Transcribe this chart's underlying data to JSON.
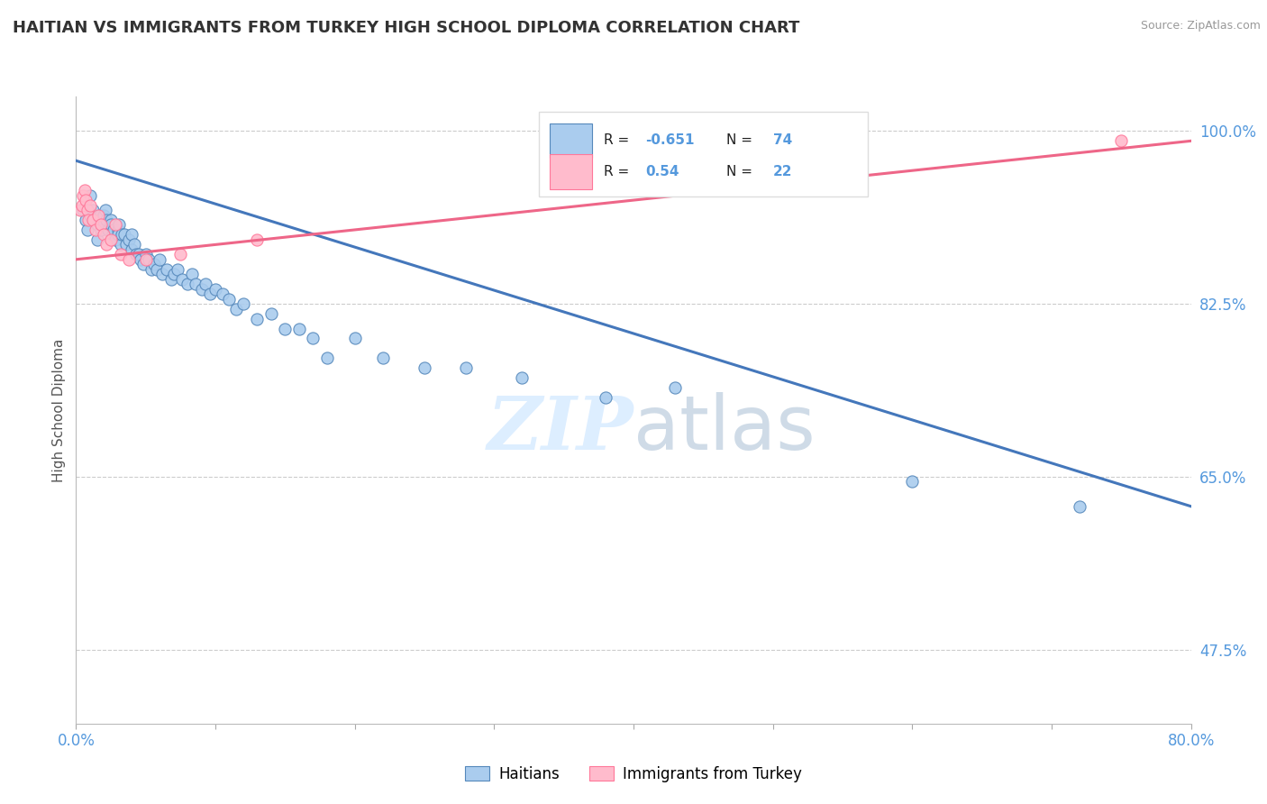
{
  "title": "HAITIAN VS IMMIGRANTS FROM TURKEY HIGH SCHOOL DIPLOMA CORRELATION CHART",
  "source": "Source: ZipAtlas.com",
  "ylabel": "High School Diploma",
  "xlim": [
    0.0,
    0.8
  ],
  "ylim": [
    0.4,
    1.035
  ],
  "haitiansR": -0.651,
  "haitiansN": 74,
  "turkeyR": 0.54,
  "turkeyN": 22,
  "blue_scatter_x": [
    0.005,
    0.007,
    0.008,
    0.01,
    0.01,
    0.012,
    0.013,
    0.015,
    0.015,
    0.017,
    0.018,
    0.02,
    0.02,
    0.021,
    0.022,
    0.023,
    0.025,
    0.025,
    0.026,
    0.027,
    0.028,
    0.03,
    0.03,
    0.031,
    0.032,
    0.033,
    0.035,
    0.036,
    0.038,
    0.04,
    0.04,
    0.042,
    0.043,
    0.045,
    0.046,
    0.048,
    0.05,
    0.052,
    0.054,
    0.056,
    0.058,
    0.06,
    0.062,
    0.065,
    0.068,
    0.07,
    0.073,
    0.076,
    0.08,
    0.083,
    0.086,
    0.09,
    0.093,
    0.096,
    0.1,
    0.105,
    0.11,
    0.115,
    0.12,
    0.13,
    0.14,
    0.15,
    0.16,
    0.17,
    0.18,
    0.2,
    0.22,
    0.25,
    0.28,
    0.32,
    0.38,
    0.43,
    0.6,
    0.72
  ],
  "blue_scatter_y": [
    0.92,
    0.91,
    0.9,
    0.935,
    0.915,
    0.92,
    0.91,
    0.905,
    0.89,
    0.915,
    0.9,
    0.915,
    0.905,
    0.92,
    0.91,
    0.9,
    0.91,
    0.905,
    0.895,
    0.9,
    0.89,
    0.9,
    0.895,
    0.905,
    0.885,
    0.895,
    0.895,
    0.885,
    0.89,
    0.895,
    0.88,
    0.885,
    0.875,
    0.875,
    0.87,
    0.865,
    0.875,
    0.87,
    0.86,
    0.865,
    0.86,
    0.87,
    0.855,
    0.86,
    0.85,
    0.855,
    0.86,
    0.85,
    0.845,
    0.855,
    0.845,
    0.84,
    0.845,
    0.835,
    0.84,
    0.835,
    0.83,
    0.82,
    0.825,
    0.81,
    0.815,
    0.8,
    0.8,
    0.79,
    0.77,
    0.79,
    0.77,
    0.76,
    0.76,
    0.75,
    0.73,
    0.74,
    0.645,
    0.62
  ],
  "pink_scatter_x": [
    0.003,
    0.004,
    0.005,
    0.006,
    0.007,
    0.008,
    0.009,
    0.01,
    0.012,
    0.014,
    0.016,
    0.018,
    0.02,
    0.022,
    0.025,
    0.028,
    0.032,
    0.038,
    0.05,
    0.075,
    0.13,
    0.75
  ],
  "pink_scatter_y": [
    0.92,
    0.925,
    0.935,
    0.94,
    0.93,
    0.92,
    0.91,
    0.925,
    0.91,
    0.9,
    0.915,
    0.905,
    0.895,
    0.885,
    0.89,
    0.905,
    0.875,
    0.87,
    0.87,
    0.875,
    0.89,
    0.99
  ],
  "blue_line_x": [
    0.0,
    0.8
  ],
  "blue_line_y": [
    0.97,
    0.62
  ],
  "pink_line_x": [
    0.0,
    0.8
  ],
  "pink_line_y": [
    0.87,
    0.99
  ],
  "blue_scatter_color": "#AACCEE",
  "blue_edge_color": "#5588BB",
  "pink_scatter_color": "#FFBBCC",
  "pink_edge_color": "#FF7799",
  "blue_line_color": "#4477BB",
  "pink_line_color": "#EE6688",
  "grid_color": "#CCCCCC",
  "watermark_color": "#DDEEFF",
  "right_tick_color": "#5599DD",
  "xtick_color": "#5599DD"
}
